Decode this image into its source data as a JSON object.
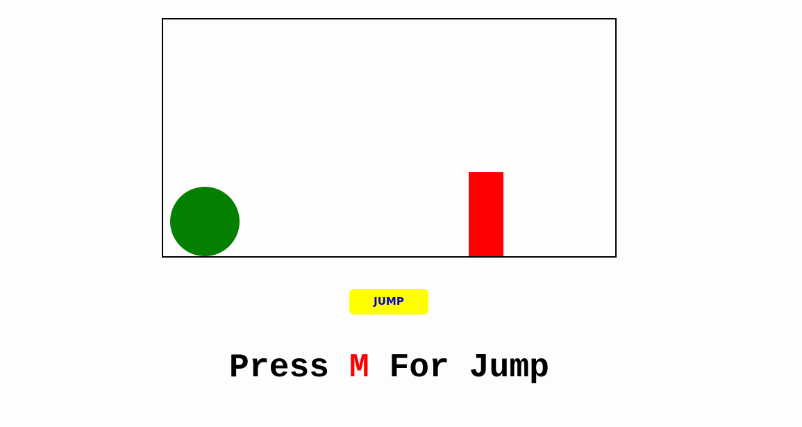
{
  "game": {
    "colors": {
      "player": "#057f00",
      "obstacle": "#ff0000",
      "border": "#000000"
    }
  },
  "controls": {
    "jump_label": "JUMP",
    "jump_bg": "#ffff00",
    "jump_text_color": "#0000cc"
  },
  "instruction": {
    "prefix": "Press ",
    "key": "M",
    "suffix": " For Jump",
    "key_color": "#ff0000"
  }
}
